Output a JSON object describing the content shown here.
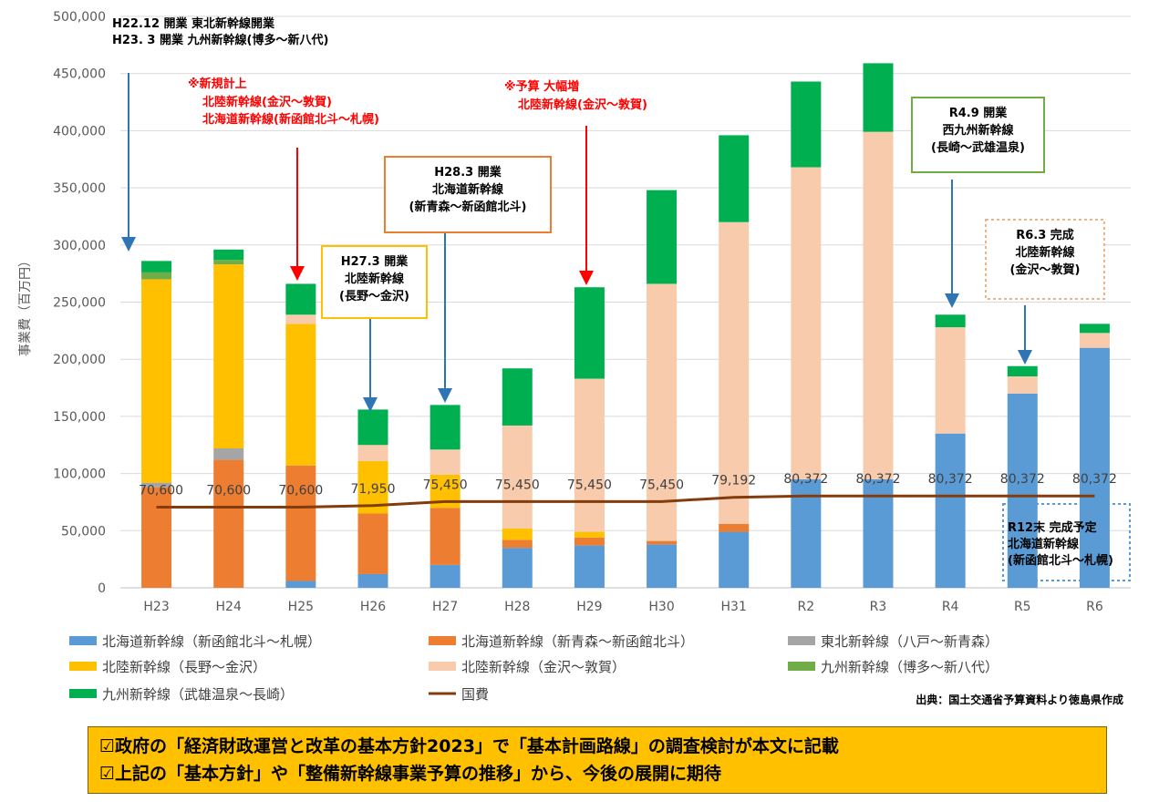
{
  "chart_data": {
    "type": "stacked-bar+line",
    "ylabel": "事業費（百万円）",
    "ylim": [
      0,
      500000
    ],
    "yticks": [
      "0",
      "50,000",
      "100,000",
      "150,000",
      "200,000",
      "250,000",
      "300,000",
      "350,000",
      "400,000",
      "450,000",
      "500,000"
    ],
    "ytick_values": [
      0,
      50000,
      100000,
      150000,
      200000,
      250000,
      300000,
      350000,
      400000,
      450000,
      500000
    ],
    "categories": [
      "H23",
      "H24",
      "H25",
      "H26",
      "H27",
      "H28",
      "H29",
      "H30",
      "H31",
      "R2",
      "R3",
      "R4",
      "R5",
      "R6"
    ],
    "series": [
      {
        "name": "北海道新幹線（新函館北斗～札幌）",
        "color": "#5b9bd5",
        "values": [
          0,
          0,
          6000,
          12000,
          20000,
          35000,
          37000,
          38000,
          49000,
          95000,
          95000,
          135000,
          170000,
          210000
        ]
      },
      {
        "name": "北海道新幹線（新青森～新函館北斗）",
        "color": "#ed7d31",
        "values": [
          88000,
          112000,
          101000,
          53000,
          50000,
          7000,
          7000,
          3000,
          7000,
          0,
          0,
          0,
          0,
          0
        ]
      },
      {
        "name": "東北新幹線（八戸～新青森）",
        "color": "#a5a5a5",
        "values": [
          4000,
          10000,
          0,
          0,
          0,
          0,
          0,
          0,
          0,
          0,
          0,
          0,
          0,
          0
        ]
      },
      {
        "name": "北陸新幹線（長野～金沢）",
        "color": "#ffc000",
        "values": [
          178000,
          161000,
          124000,
          46000,
          29000,
          10000,
          5000,
          0,
          0,
          0,
          0,
          0,
          0,
          0
        ]
      },
      {
        "name": "北陸新幹線（金沢～敦賀）",
        "color": "#f8cbad",
        "values": [
          0,
          0,
          8000,
          14000,
          22000,
          90000,
          134000,
          225000,
          264000,
          273000,
          304000,
          93000,
          15000,
          13000
        ]
      },
      {
        "name": "九州新幹線（博多～新八代）",
        "color": "#70ad47",
        "values": [
          6000,
          4000,
          0,
          0,
          0,
          0,
          0,
          0,
          0,
          0,
          0,
          0,
          0,
          0
        ]
      },
      {
        "name": "九州新幹線（武雄温泉～長崎）",
        "color": "#00b050",
        "values": [
          10000,
          9000,
          27000,
          31000,
          39000,
          50000,
          80000,
          82000,
          76000,
          75000,
          60000,
          11000,
          9000,
          8000
        ]
      }
    ],
    "line": {
      "name": "国費",
      "color": "#843c0c",
      "values": [
        70600,
        70600,
        70600,
        71950,
        75450,
        75450,
        75450,
        75450,
        79192,
        80372,
        80372,
        80372,
        80372,
        80372
      ],
      "labels": [
        "70,600",
        "70,600",
        "70,600",
        "71,950",
        "75,450",
        "75,450",
        "75,450",
        "75,450",
        "79,192",
        "80,372",
        "80,372",
        "80,372",
        "80,372",
        "80,372"
      ]
    },
    "annotations": [
      {
        "lines": [
          "H22.12 開業 東北新幹線開業",
          "H23. 3  開業  九州新幹線(博多～新八代)"
        ],
        "color": "#000000"
      },
      {
        "lines": [
          "※新規計上",
          "北陸新幹線(金沢～敦賀)",
          "北海道新幹線(新函館北斗～札幌)"
        ],
        "color": "#ff0000"
      },
      {
        "lines": [
          "※予算 大幅増",
          "北陸新幹線(金沢～敦賀)"
        ],
        "color": "#ff0000"
      },
      {
        "lines": [
          "H27.3 開業",
          "北陸新幹線",
          "(長野～金沢)"
        ],
        "border": "#ffc000"
      },
      {
        "lines": [
          "H28.3 開業",
          "北海道新幹線",
          "(新青森～新函館北斗)"
        ],
        "border": "#ed7d31"
      },
      {
        "lines": [
          "R4.9 開業",
          "西九州新幹線",
          "(長崎～武雄温泉)"
        ],
        "border": "#70ad47"
      },
      {
        "lines": [
          "R6.3 完成",
          "北陸新幹線",
          "(金沢～敦賀)"
        ],
        "border": "#f4b183"
      },
      {
        "lines": [
          "R12末 完成予定",
          "北海道新幹線",
          "(新函館北斗～札幌)"
        ],
        "border": "#5b9bd5"
      }
    ],
    "source": "出典：国土交通省予算資料より徳島県作成"
  },
  "notes": {
    "line1": "☑政府の「経済財政運営と改革の基本方針2023」で「基本計画路線」の調査検討が本文に記載",
    "line2": "☑上記の「基本方針」や「整備新幹線事業予算の推移」から、今後の展開に期待"
  }
}
